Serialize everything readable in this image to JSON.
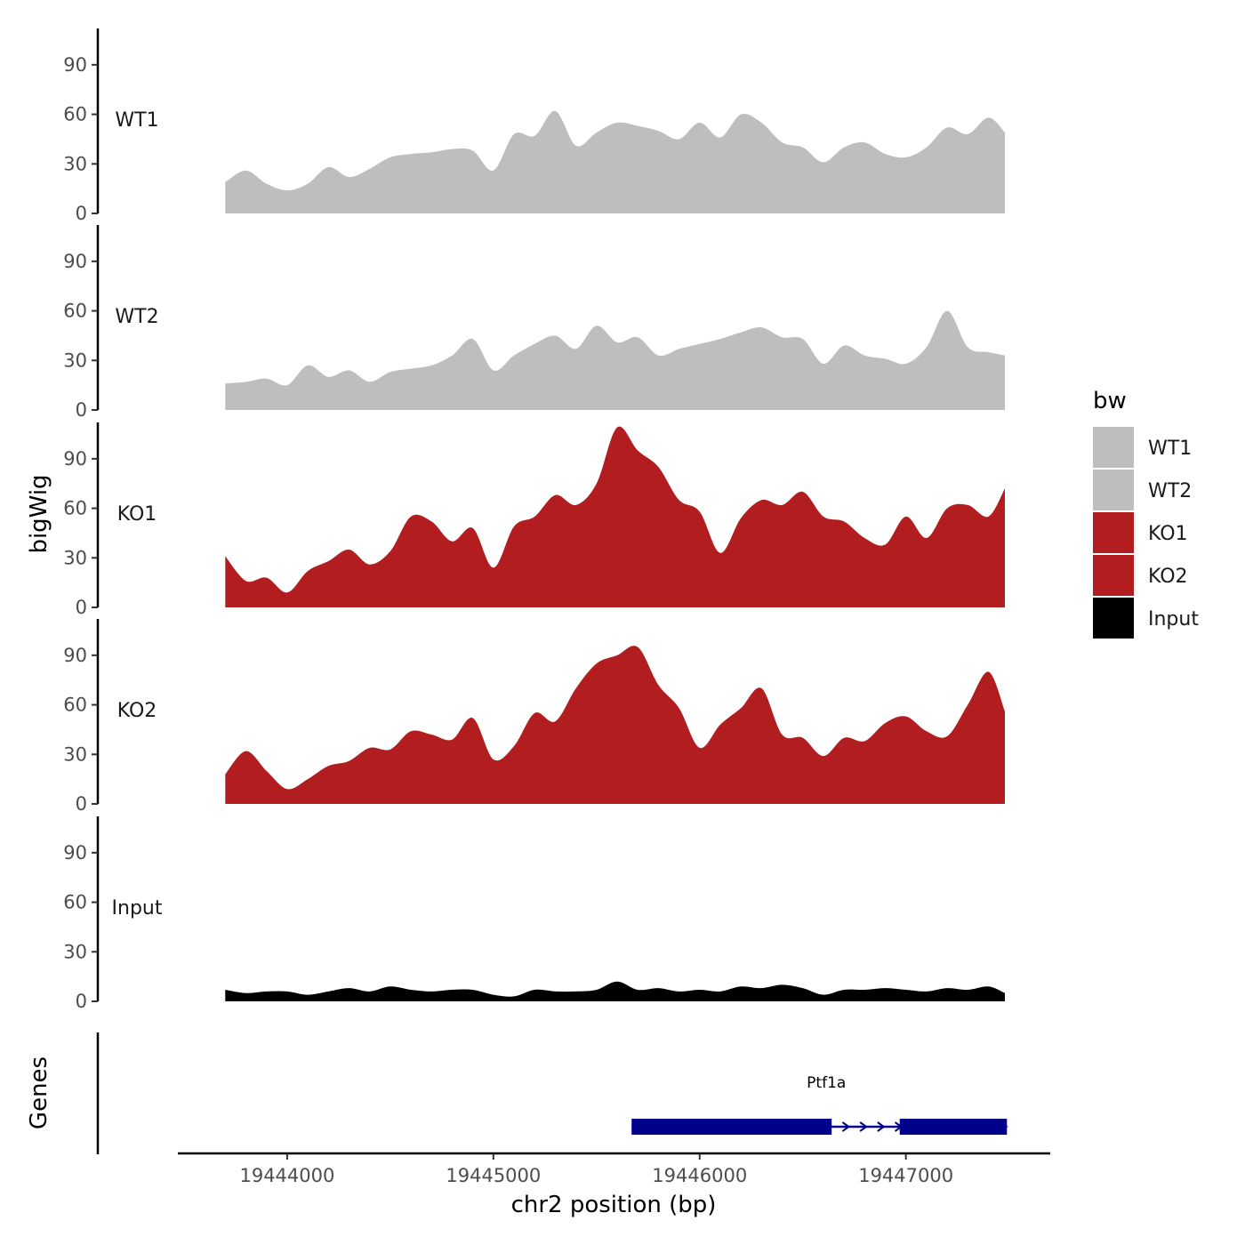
{
  "chart_data": {
    "type": "area",
    "ylabel": "bigWig",
    "genes_label": "Genes",
    "xlabel": "chr2 position (bp)",
    "xlim": [
      19443470,
      19447700
    ],
    "x_ticks": [
      19444000,
      19445000,
      19446000,
      19447000
    ],
    "x_tick_labels": [
      "19444000",
      "19445000",
      "19446000",
      "19447000"
    ],
    "ylim": [
      0,
      112
    ],
    "y_ticks": [
      0,
      30,
      60,
      90
    ],
    "y_tick_labels": [
      "0",
      "30",
      "60",
      "90"
    ],
    "legend": {
      "title": "bw",
      "position": "right",
      "entries": [
        {
          "label": "WT1",
          "color": "#bebebe"
        },
        {
          "label": "WT2",
          "color": "#bebebe"
        },
        {
          "label": "KO1",
          "color": "#b21e1f"
        },
        {
          "label": "KO2",
          "color": "#b21e1f"
        },
        {
          "label": "Input",
          "color": "#000000"
        }
      ]
    },
    "x": [
      19443700,
      19443800,
      19443900,
      19444000,
      19444100,
      19444200,
      19444300,
      19444400,
      19444500,
      19444600,
      19444700,
      19444800,
      19444900,
      19445000,
      19445100,
      19445200,
      19445300,
      19445400,
      19445500,
      19445600,
      19445700,
      19445800,
      19445900,
      19446000,
      19446100,
      19446200,
      19446300,
      19446400,
      19446500,
      19446600,
      19446700,
      19446800,
      19446900,
      19447000,
      19447100,
      19447200,
      19447300,
      19447400,
      19447480
    ],
    "series": [
      {
        "name": "WT1",
        "color": "#bebebe",
        "values": [
          19,
          26,
          18,
          14,
          18,
          28,
          22,
          27,
          34,
          36,
          37,
          39,
          38,
          26,
          48,
          47,
          62,
          41,
          49,
          55,
          53,
          50,
          45,
          55,
          46,
          60,
          55,
          43,
          40,
          31,
          40,
          43,
          36,
          34,
          40,
          52,
          48,
          58,
          49
        ]
      },
      {
        "name": "WT2",
        "color": "#bebebe",
        "values": [
          16,
          17,
          19,
          15,
          27,
          20,
          24,
          17,
          23,
          25,
          27,
          33,
          43,
          24,
          33,
          40,
          45,
          37,
          51,
          41,
          44,
          33,
          37,
          40,
          43,
          47,
          50,
          44,
          43,
          28,
          39,
          33,
          31,
          28,
          38,
          60,
          38,
          35,
          33
        ]
      },
      {
        "name": "KO1",
        "color": "#b21e1f",
        "values": [
          31,
          16,
          18,
          9,
          22,
          28,
          35,
          26,
          34,
          55,
          52,
          40,
          48,
          24,
          49,
          55,
          68,
          62,
          75,
          109,
          95,
          85,
          65,
          58,
          33,
          54,
          65,
          62,
          70,
          55,
          52,
          42,
          38,
          55,
          42,
          60,
          62,
          55,
          72
        ]
      },
      {
        "name": "KO2",
        "color": "#b21e1f",
        "values": [
          18,
          32,
          20,
          9,
          15,
          23,
          26,
          34,
          33,
          44,
          42,
          39,
          52,
          27,
          35,
          55,
          50,
          70,
          85,
          90,
          95,
          72,
          58,
          34,
          48,
          58,
          70,
          42,
          40,
          29,
          40,
          38,
          49,
          53,
          44,
          41,
          60,
          80,
          56
        ]
      },
      {
        "name": "Input",
        "color": "#000000",
        "values": [
          7,
          5,
          6,
          6,
          4,
          6,
          8,
          6,
          9,
          7,
          6,
          7,
          7,
          4,
          3,
          7,
          6,
          6,
          7,
          12,
          7,
          8,
          6,
          7,
          6,
          9,
          8,
          10,
          8,
          4,
          7,
          7,
          8,
          7,
          6,
          8,
          7,
          9,
          5
        ]
      }
    ],
    "gene": {
      "name": "Ptf1a",
      "strand": "+",
      "start": 19445670,
      "end": 19447490,
      "exons": [
        [
          19445670,
          19446640
        ],
        [
          19446970,
          19447490
        ]
      ]
    }
  }
}
